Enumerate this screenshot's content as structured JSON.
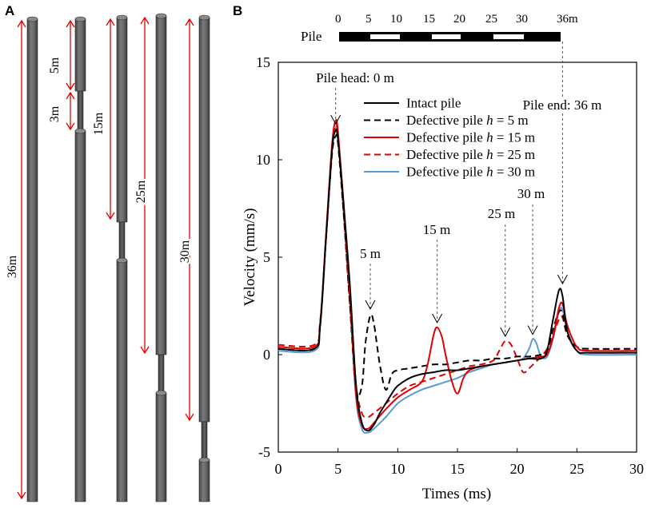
{
  "panel_a": {
    "letter": "A",
    "labels": {
      "total": "36m",
      "p2_top": "5m",
      "p2_defect": "3m",
      "p3": "15m",
      "p4": "25m",
      "p5": "30m"
    },
    "colors": {
      "pile": "#6d6d6d",
      "pile_dark": "#505050",
      "arrow": "#e00000"
    }
  },
  "panel_b": {
    "letter": "B",
    "scale_bar": {
      "label": "Pile",
      "ticks": [
        "0",
        "5",
        "10",
        "15",
        "20",
        "25",
        "30",
        "36m"
      ]
    }
  },
  "chart_data": {
    "type": "line",
    "title": "",
    "xlabel": "Times (ms)",
    "ylabel": "Velocity (mm/s)",
    "xlim": [
      0,
      30
    ],
    "ylim": [
      -5,
      15
    ],
    "xticks": [
      0,
      5,
      10,
      15,
      20,
      25,
      30
    ],
    "yticks": [
      -5,
      0,
      5,
      10,
      15
    ],
    "grid": false,
    "legend_position": "top-right",
    "series": [
      {
        "name": "Intact pile",
        "color": "#000000",
        "dash": "solid",
        "x": [
          0,
          3,
          3.5,
          4,
          4.5,
          4.8,
          5,
          5.5,
          6,
          6.5,
          7,
          7.5,
          8,
          8.5,
          9,
          9.5,
          10,
          11,
          12,
          13,
          14,
          15,
          16,
          17,
          18,
          19,
          20,
          21,
          22,
          22.5,
          23,
          23.5,
          23.8,
          24.2,
          25,
          26,
          30
        ],
        "y": [
          0.3,
          0.3,
          1.5,
          6,
          10.5,
          11.5,
          11.0,
          7.5,
          3.5,
          -1.5,
          -3.5,
          -3.9,
          -3.6,
          -3.0,
          -2.5,
          -2.0,
          -1.6,
          -1.2,
          -1.0,
          -0.9,
          -0.8,
          -0.8,
          -0.7,
          -0.6,
          -0.5,
          -0.4,
          -0.3,
          -0.2,
          -0.2,
          0.2,
          1.8,
          3.3,
          3.0,
          1.2,
          0.2,
          0.1,
          0.1
        ]
      },
      {
        "name": "Defective pile h = 5 m",
        "color": "#000000",
        "dash": "dashed",
        "x": [
          0,
          3,
          3.5,
          4,
          4.5,
          4.8,
          5,
          5.5,
          6,
          6.5,
          7,
          7.3,
          7.7,
          8,
          8.5,
          9,
          9.5,
          10,
          11,
          12,
          13,
          14,
          15,
          16,
          17,
          18,
          19,
          20,
          21,
          22,
          22.5,
          23,
          23.5,
          23.8,
          24.2,
          25,
          26,
          30
        ],
        "y": [
          0.3,
          0.3,
          1.5,
          6,
          10.3,
          11.2,
          10.8,
          7.0,
          2.5,
          -1.8,
          -1.6,
          0.6,
          2.0,
          1.6,
          -0.5,
          -1.8,
          -1.0,
          -0.8,
          -0.7,
          -0.6,
          -0.5,
          -0.5,
          -0.4,
          -0.3,
          -0.3,
          -0.2,
          -0.2,
          -0.1,
          -0.1,
          0.0,
          0.2,
          1.3,
          2.2,
          2.1,
          1.0,
          0.4,
          0.3,
          0.3
        ]
      },
      {
        "name": "Defective pile h = 15 m",
        "color": "#e00000",
        "dash": "solid",
        "x": [
          0,
          3,
          3.5,
          4,
          4.5,
          4.8,
          5,
          5.5,
          6,
          6.5,
          7,
          7.5,
          8,
          9,
          10,
          11,
          12,
          12.5,
          13,
          13.3,
          13.7,
          14,
          14.5,
          15,
          15.5,
          16,
          17,
          18,
          19,
          20,
          21,
          22,
          22.5,
          23,
          23.5,
          23.8,
          24.2,
          25,
          26,
          30
        ],
        "y": [
          0.4,
          0.4,
          1.6,
          6.2,
          10.8,
          12.0,
          11.4,
          7.5,
          3.0,
          -2.0,
          -3.6,
          -3.8,
          -3.5,
          -2.8,
          -2.2,
          -1.8,
          -1.4,
          -0.5,
          1.0,
          1.4,
          0.9,
          0.0,
          -1.3,
          -2.0,
          -1.2,
          -0.8,
          -0.6,
          -0.5,
          -0.4,
          -0.3,
          -0.2,
          -0.1,
          0.0,
          0.9,
          2.4,
          2.6,
          1.5,
          0.4,
          0.2,
          0.2
        ]
      },
      {
        "name": "Defective pile h = 25 m",
        "color": "#e00000",
        "dash": "dashed",
        "x": [
          0,
          3,
          3.5,
          4,
          4.5,
          4.8,
          5,
          5.5,
          6,
          6.5,
          7,
          7.5,
          8,
          9,
          10,
          11,
          12,
          13,
          14,
          15,
          16,
          17,
          18,
          18.5,
          19,
          19.5,
          20,
          20.5,
          21,
          22,
          22.5,
          23,
          23.5,
          23.8,
          24.2,
          25,
          26,
          30
        ],
        "y": [
          0.5,
          0.5,
          1.7,
          6.0,
          10.5,
          11.8,
          11.2,
          7.0,
          2.5,
          -1.5,
          -3.0,
          -3.2,
          -3.0,
          -2.5,
          -2.0,
          -1.6,
          -1.4,
          -1.2,
          -1.0,
          -0.8,
          -0.6,
          -0.5,
          -0.3,
          0.2,
          0.7,
          0.5,
          -0.2,
          -0.9,
          -0.7,
          -0.1,
          0.3,
          1.0,
          1.8,
          1.9,
          1.0,
          0.4,
          0.3,
          0.3
        ]
      },
      {
        "name": "Defective pile h = 30 m",
        "color": "#5b9bd5",
        "dash": "solid",
        "x": [
          0,
          3,
          3.5,
          4,
          4.5,
          4.8,
          5,
          5.5,
          6,
          6.5,
          7,
          7.5,
          8,
          9,
          10,
          11,
          12,
          13,
          14,
          15,
          16,
          17,
          18,
          19,
          20,
          20.5,
          21,
          21.3,
          21.6,
          22,
          22.5,
          23,
          23.5,
          23.8,
          24.2,
          25,
          26,
          30
        ],
        "y": [
          0.2,
          0.2,
          1.4,
          6.0,
          10.6,
          11.6,
          11.2,
          7.2,
          2.8,
          -2.2,
          -3.8,
          -4.0,
          -3.8,
          -3.2,
          -2.5,
          -2.1,
          -1.8,
          -1.6,
          -1.4,
          -1.2,
          -0.9,
          -0.7,
          -0.5,
          -0.4,
          -0.3,
          -0.2,
          0.3,
          0.8,
          0.6,
          -0.1,
          -0.1,
          0.8,
          2.2,
          2.3,
          1.2,
          0.2,
          0.0,
          0.0
        ]
      }
    ],
    "annotations": [
      {
        "text": "Pile head: 0 m",
        "x": 4.8,
        "y": 11.8
      },
      {
        "text": "5 m",
        "x": 7.7,
        "y": 2.3
      },
      {
        "text": "15 m",
        "x": 13.3,
        "y": 1.6
      },
      {
        "text": "25 m",
        "x": 19.0,
        "y": 0.9
      },
      {
        "text": "30 m",
        "x": 21.3,
        "y": 1.0
      },
      {
        "text": "Pile end: 36 m",
        "x": 23.8,
        "y": 3.6
      }
    ]
  }
}
